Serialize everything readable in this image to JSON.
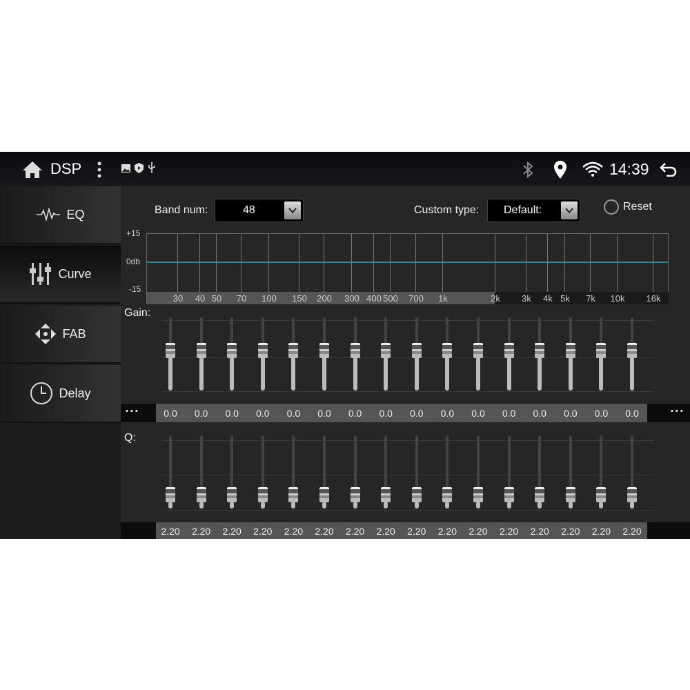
{
  "status_bar": {
    "title": "DSP",
    "time": "14:39",
    "icons": [
      "home-icon",
      "more-vert-icon",
      "image-icon",
      "shield-play-icon",
      "usb-icon",
      "bluetooth-icon",
      "location-pin-icon",
      "wifi-icon",
      "back-icon"
    ]
  },
  "sidebar": {
    "items": [
      {
        "label": "EQ",
        "icon": "waveform-icon",
        "selected": false
      },
      {
        "label": "Curve",
        "icon": "sliders-icon",
        "selected": true
      },
      {
        "label": "FAB",
        "icon": "fader-balance-icon",
        "selected": false
      },
      {
        "label": "Delay",
        "icon": "clock-icon",
        "selected": false
      }
    ]
  },
  "controls": {
    "band_num_label": "Band num:",
    "band_num_value": "48",
    "custom_type_label": "Custom type:",
    "custom_type_value": "Default:",
    "reset_label": "Reset"
  },
  "graph": {
    "y_ticks": [
      "+15",
      "0db",
      "-15"
    ],
    "x_labels": [
      "30",
      "40",
      "50",
      "70",
      "100",
      "150",
      "200",
      "300",
      "400",
      "500",
      "700",
      "1k",
      "2k",
      "3k",
      "4k",
      "5k",
      "7k",
      "10k",
      "16k"
    ],
    "curve_color": "#2a8a94"
  },
  "gain": {
    "label": "Gain:",
    "more": "• • •",
    "values": [
      "0.0",
      "0.0",
      "0.0",
      "0.0",
      "0.0",
      "0.0",
      "0.0",
      "0.0",
      "0.0",
      "0.0",
      "0.0",
      "0.0",
      "0.0",
      "0.0",
      "0.0",
      "0.0"
    ]
  },
  "q": {
    "label": "Q:",
    "values": [
      "2.20",
      "2.20",
      "2.20",
      "2.20",
      "2.20",
      "2.20",
      "2.20",
      "2.20",
      "2.20",
      "2.20",
      "2.20",
      "2.20",
      "2.20",
      "2.20",
      "2.20",
      "2.20"
    ]
  }
}
